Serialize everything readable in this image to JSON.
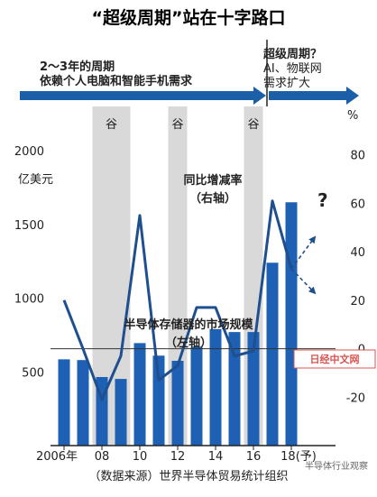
{
  "header": {
    "title": "“超级周期”站在十字路口",
    "era_left_line1": "2～3年的周期",
    "era_left_line2": "依赖个人电脑和智能手机需求",
    "era_right_line1": "超级周期？",
    "era_right_line2": "AI、物联网",
    "era_right_line3": "需求扩大"
  },
  "trough_label": "谷",
  "question_mark": "?",
  "footer": {
    "source": "（数据来源）世界半导体贸易统计组织",
    "watermark_left": "日经中文网",
    "watermark_right": "半导体行业观察"
  },
  "colors": {
    "bar": "#1e60b3",
    "line": "#1f4f8e",
    "arrow": "#1a5fa8",
    "trough": "#d9d9d9",
    "text": "#222222"
  },
  "chart_data": {
    "type": "bar+line",
    "x_tick_labels": [
      "2006年",
      "08",
      "10",
      "12",
      "14",
      "16",
      "18(予)"
    ],
    "categories": [
      "2006",
      "2007",
      "2008",
      "2009",
      "2010",
      "2011",
      "2012",
      "2013",
      "2014",
      "2015",
      "2016",
      "2017",
      "2018"
    ],
    "left_axis": {
      "unit": "亿美元",
      "ticks": [
        "500",
        "1000",
        "1500",
        "2000"
      ],
      "range": [
        0,
        2300
      ]
    },
    "right_axis": {
      "unit": "%",
      "ticks": [
        "-20",
        "0",
        "20",
        "40",
        "60",
        "80"
      ],
      "range": [
        -40,
        100
      ]
    },
    "series": [
      {
        "name": "半导体存储器的市场规模",
        "sub_label": "（左轴）",
        "type": "bar",
        "axis": "left",
        "values": [
          585,
          580,
          465,
          452,
          695,
          610,
          575,
          670,
          790,
          770,
          770,
          1240,
          1650
        ]
      },
      {
        "name": "同比增减率",
        "sub_label": "（右轴）",
        "type": "line",
        "axis": "right",
        "values": [
          20,
          0,
          -21,
          -3,
          55,
          -13,
          -7,
          17,
          17,
          -3,
          -1,
          61,
          33
        ],
        "forecast_branches": [
          46,
          23
        ]
      }
    ],
    "trough_periods": [
      [
        2007.5,
        2009.5
      ],
      [
        2011.5,
        2012.5
      ],
      [
        2015.5,
        2016.5
      ]
    ],
    "annotations": {
      "era_split_at": 2017,
      "zero_reference_line": true
    }
  }
}
